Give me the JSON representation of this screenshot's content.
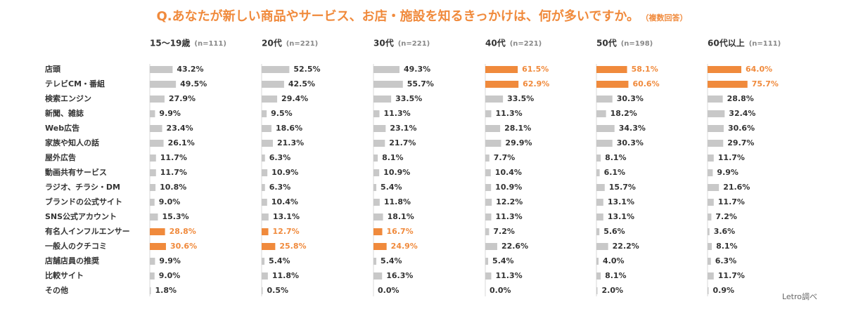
{
  "title": "Q.あなたが新しい商品やサービス、お店・施設を知るきっかけは、何が多いですか。",
  "title_note": "（複数回答）",
  "source": "Letro調べ",
  "colors": {
    "accent": "#F08A3C",
    "bar": "#C8C8C8",
    "label": "#333333",
    "n": "#888888"
  },
  "chart_data": {
    "type": "bar",
    "orientation": "horizontal",
    "title": "Q.あなたが新しい商品やサービス、お店・施設を知るきっかけは、何が多いですか。",
    "categories": [
      "店頭",
      "テレビCM・番組",
      "検索エンジン",
      "新聞、雑誌",
      "Web広告",
      "家族や知人の話",
      "屋外広告",
      "動画共有サービス",
      "ラジオ、チラシ・DM",
      "ブランドの公式サイト",
      "SNS公式アカウント",
      "有名人インフルエンサー",
      "一般人のクチコミ",
      "店舗店員の推奨",
      "比較サイト",
      "その他"
    ],
    "series": [
      {
        "name": "15〜19歳",
        "n": "(n=111)",
        "values": [
          43.2,
          49.5,
          27.9,
          9.9,
          23.4,
          26.1,
          11.7,
          11.7,
          10.8,
          9.0,
          15.3,
          28.8,
          30.6,
          9.9,
          9.0,
          1.8
        ],
        "highlight": [
          false,
          false,
          false,
          false,
          false,
          false,
          false,
          false,
          false,
          false,
          false,
          true,
          true,
          false,
          false,
          false
        ]
      },
      {
        "name": "20代",
        "n": "(n=221)",
        "values": [
          52.5,
          42.5,
          29.4,
          9.5,
          18.6,
          21.3,
          6.3,
          10.9,
          6.3,
          10.4,
          13.1,
          12.7,
          25.8,
          5.4,
          11.8,
          0.5
        ],
        "highlight": [
          false,
          false,
          false,
          false,
          false,
          false,
          false,
          false,
          false,
          false,
          false,
          true,
          true,
          false,
          false,
          false
        ]
      },
      {
        "name": "30代",
        "n": "(n=221)",
        "values": [
          49.3,
          55.7,
          33.5,
          11.3,
          23.1,
          21.7,
          8.1,
          10.9,
          5.4,
          11.8,
          18.1,
          16.7,
          24.9,
          5.4,
          16.3,
          0.0
        ],
        "highlight": [
          false,
          false,
          false,
          false,
          false,
          false,
          false,
          false,
          false,
          false,
          false,
          true,
          true,
          false,
          false,
          false
        ]
      },
      {
        "name": "40代",
        "n": "(n=221)",
        "values": [
          61.5,
          62.9,
          33.5,
          11.3,
          28.1,
          29.9,
          7.7,
          10.4,
          10.9,
          12.2,
          11.3,
          7.2,
          22.6,
          5.4,
          11.3,
          0.0
        ],
        "highlight": [
          true,
          true,
          false,
          false,
          false,
          false,
          false,
          false,
          false,
          false,
          false,
          false,
          false,
          false,
          false,
          false
        ]
      },
      {
        "name": "50代",
        "n": "(n=198)",
        "values": [
          58.1,
          60.6,
          30.3,
          18.2,
          34.3,
          30.3,
          8.1,
          6.1,
          15.7,
          13.1,
          13.1,
          5.6,
          22.2,
          4.0,
          8.1,
          2.0
        ],
        "highlight": [
          true,
          true,
          false,
          false,
          false,
          false,
          false,
          false,
          false,
          false,
          false,
          false,
          false,
          false,
          false,
          false
        ]
      },
      {
        "name": "60代以上",
        "n": "(n=111)",
        "values": [
          64.0,
          75.7,
          28.8,
          32.4,
          30.6,
          29.7,
          11.7,
          9.9,
          21.6,
          11.7,
          7.2,
          3.6,
          8.1,
          6.3,
          11.7,
          0.9
        ],
        "highlight": [
          true,
          true,
          false,
          false,
          false,
          false,
          false,
          false,
          false,
          false,
          false,
          false,
          false,
          false,
          false,
          false
        ]
      }
    ],
    "unit": "%"
  }
}
